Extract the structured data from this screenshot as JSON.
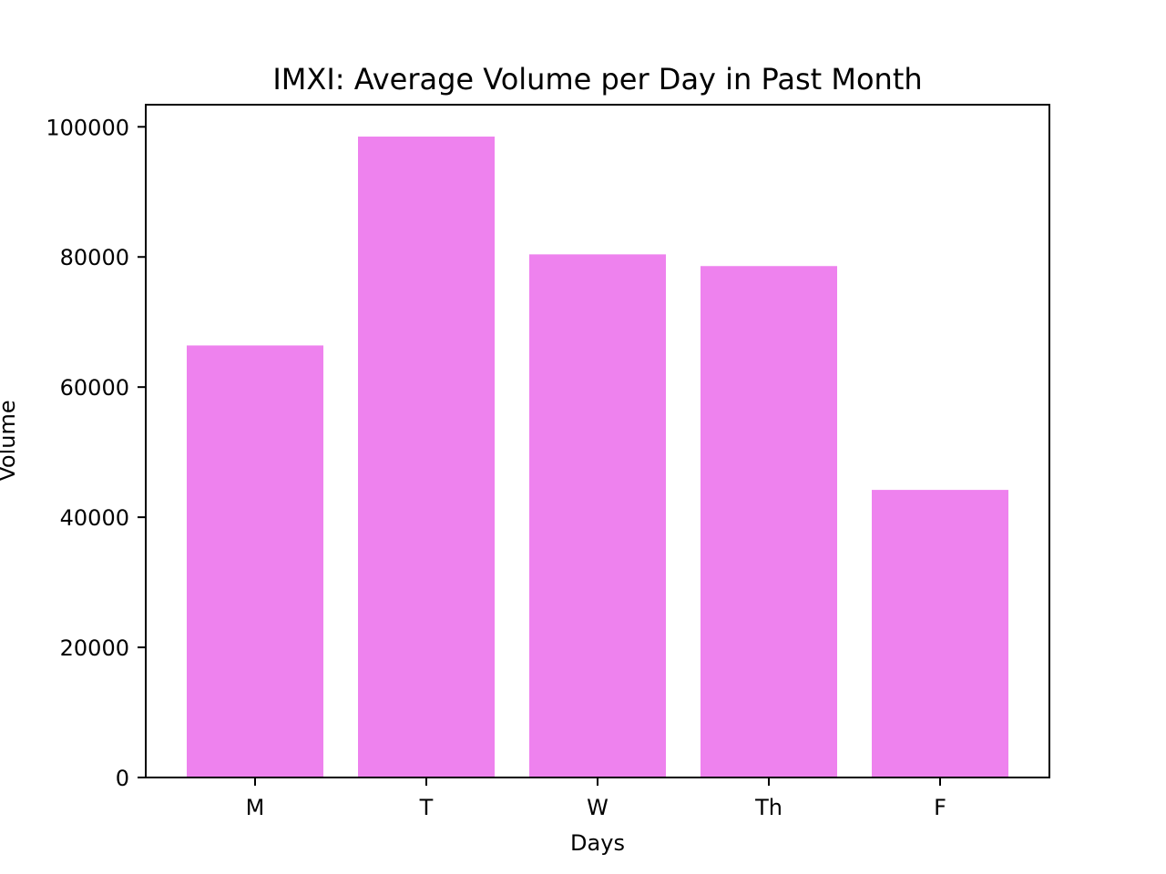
{
  "chart_data": {
    "type": "bar",
    "title": "IMXI: Average Volume per Day in Past Month",
    "xlabel": "Days",
    "ylabel": "Volume",
    "categories": [
      "M",
      "T",
      "W",
      "Th",
      "F"
    ],
    "values": [
      66400,
      98500,
      80400,
      78600,
      44200
    ],
    "ylim": [
      0,
      103400
    ],
    "yticks": [
      0,
      20000,
      40000,
      60000,
      80000,
      100000
    ],
    "ytick_labels": [
      "0",
      "20000",
      "40000",
      "60000",
      "80000",
      "100000"
    ],
    "grid": false,
    "legend": "none",
    "bar_color": "#ee82ee"
  }
}
